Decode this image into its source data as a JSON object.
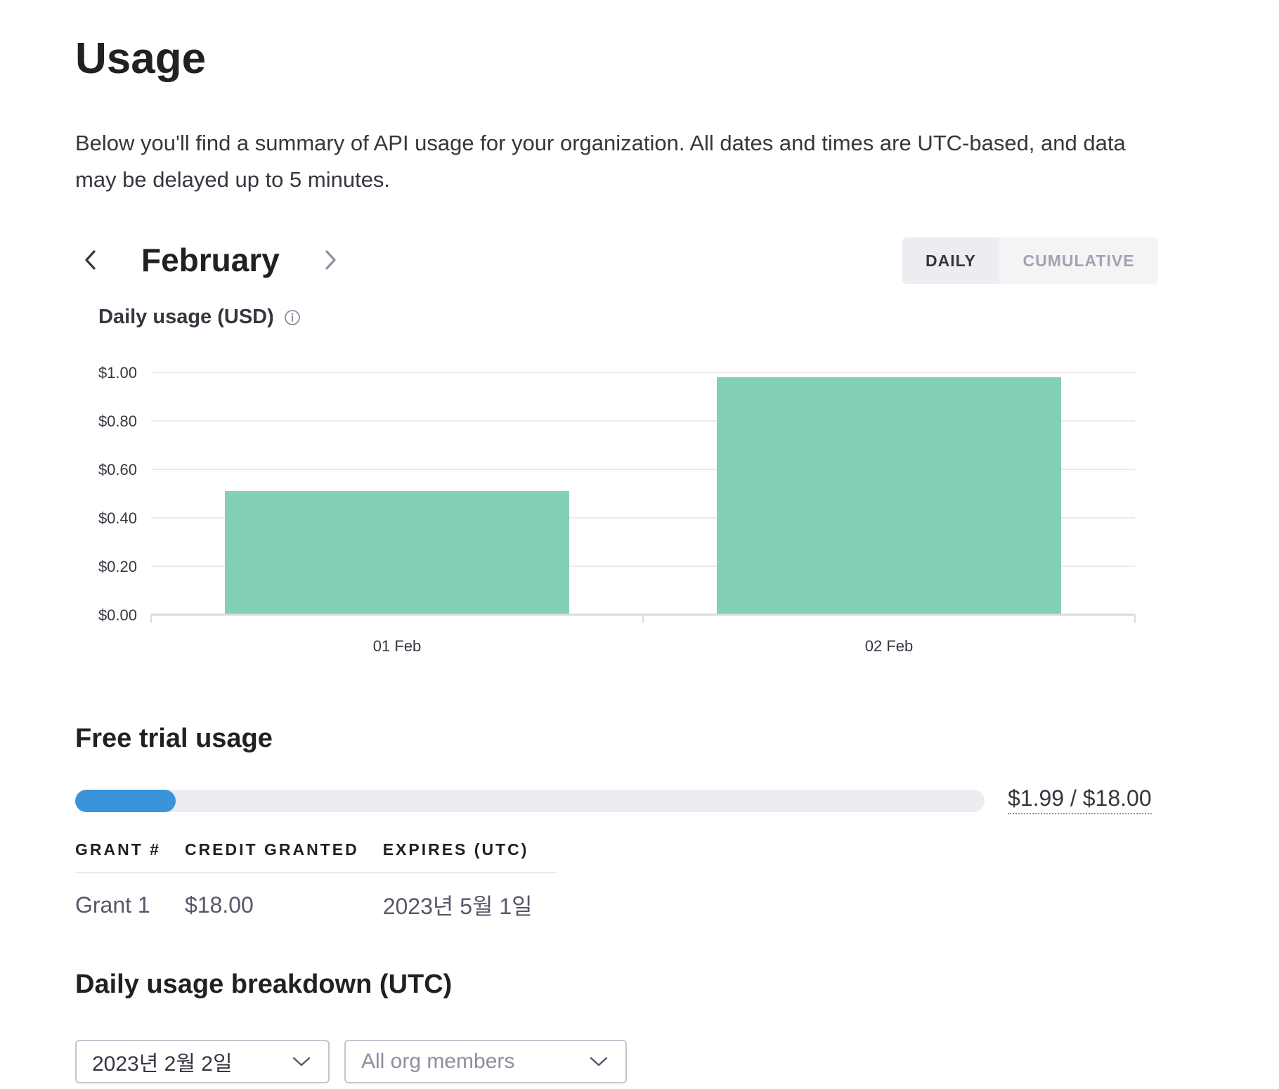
{
  "page": {
    "title": "Usage",
    "intro": "Below you'll find a summary of API usage for your organization. All dates and times are UTC-based, and data may be delayed up to 5 minutes."
  },
  "month_nav": {
    "month": "February",
    "prev_icon": "chevron-left-icon",
    "next_icon": "chevron-right-icon"
  },
  "view_toggle": {
    "options": [
      "DAILY",
      "CUMULATIVE"
    ],
    "selected": "DAILY"
  },
  "chart_header": {
    "title": "Daily usage (USD)",
    "info_icon": "info-icon"
  },
  "chart_data": {
    "type": "bar",
    "categories": [
      "01 Feb",
      "02 Feb"
    ],
    "values": [
      0.51,
      0.98
    ],
    "title": "Daily usage (USD)",
    "ylim": [
      0,
      1
    ],
    "yticks": [
      0,
      0.2,
      0.4,
      0.6,
      0.8,
      1.0
    ],
    "ytick_labels": [
      "$0.00",
      "$0.20",
      "$0.40",
      "$0.60",
      "$0.80",
      "$1.00"
    ],
    "grid": true,
    "color": "#82d0b7"
  },
  "free_trial": {
    "title": "Free trial usage",
    "used": 1.99,
    "total": 18.0,
    "progress_label": "$1.99 / $18.00",
    "bar_color": "#3b93d9",
    "table": {
      "headers": [
        "GRANT #",
        "CREDIT GRANTED",
        "EXPIRES (UTC)"
      ],
      "rows": [
        [
          "Grant 1",
          "$18.00",
          "2023년 5월 1일"
        ]
      ]
    }
  },
  "breakdown": {
    "title": "Daily usage breakdown (UTC)",
    "date_select": {
      "value": "2023년 2월 2일",
      "icon": "chevron-down-icon"
    },
    "member_select": {
      "placeholder": "All org members",
      "icon": "chevron-down-icon"
    }
  }
}
